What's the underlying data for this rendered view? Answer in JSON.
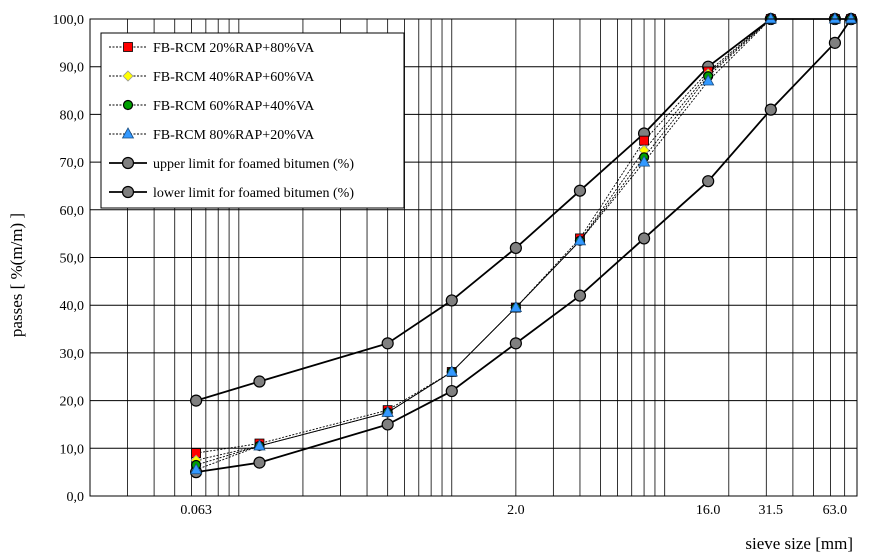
{
  "chart_data": {
    "type": "line",
    "x_scale": "log",
    "xlabel": "sieve size [mm]",
    "ylabel": "passes [ %(m/m) ]",
    "ylim": [
      0,
      100
    ],
    "xlim": [
      0.02,
      80
    ],
    "y_ticks": [
      "0,0",
      "10,0",
      "20,0",
      "30,0",
      "40,0",
      "50,0",
      "60,0",
      "70,0",
      "80,0",
      "90,0",
      "100,0"
    ],
    "x_tick_labels": [
      {
        "value": 0.063,
        "label": "0.063"
      },
      {
        "value": 2.0,
        "label": "2.0"
      },
      {
        "value": 16.0,
        "label": "16.0"
      },
      {
        "value": 31.5,
        "label": "31.5"
      },
      {
        "value": 63.0,
        "label": "63.0"
      }
    ],
    "grid": true,
    "legend_position": "top-left",
    "series": [
      {
        "name": "FB-RCM 20%RAP+80%VA",
        "marker": "square",
        "color": "#ff0000",
        "line": "dotted",
        "x": [
          0.063,
          0.125,
          0.5,
          1.0,
          2.0,
          4.0,
          8.0,
          16.0,
          31.5,
          63.0,
          75.0
        ],
        "y": [
          9,
          11,
          18,
          26,
          39.5,
          54,
          74.5,
          89,
          100,
          100,
          100
        ]
      },
      {
        "name": "FB-RCM 40%RAP+60%VA",
        "marker": "diamond",
        "color": "#ffff00",
        "line": "dotted",
        "x": [
          0.063,
          0.125,
          0.5,
          1.0,
          2.0,
          4.0,
          8.0,
          16.0,
          31.5,
          63.0,
          75.0
        ],
        "y": [
          7.5,
          10.5,
          17.5,
          26,
          39.5,
          53.5,
          72.5,
          88.5,
          100,
          100,
          100
        ]
      },
      {
        "name": "FB-RCM 60%RAP+40%VA",
        "marker": "circle",
        "color": "#00a000",
        "line": "dotted",
        "x": [
          0.063,
          0.125,
          0.5,
          1.0,
          2.0,
          4.0,
          8.0,
          16.0,
          31.5,
          63.0,
          75.0
        ],
        "y": [
          6.5,
          10.5,
          17.5,
          26,
          39.5,
          53.5,
          71,
          88,
          100,
          100,
          100
        ]
      },
      {
        "name": "FB-RCM 80%RAP+20%VA",
        "marker": "triangle",
        "color": "#3399ff",
        "line": "dotted",
        "x": [
          0.063,
          0.125,
          0.5,
          1.0,
          2.0,
          4.0,
          8.0,
          16.0,
          31.5,
          63.0,
          75.0
        ],
        "y": [
          5.5,
          10.5,
          17.5,
          26,
          39.5,
          53.5,
          70,
          87,
          100,
          100,
          100
        ]
      },
      {
        "name": "upper limit for foamed bitumen (%)",
        "marker": "circle",
        "color": "#808080",
        "line": "solid",
        "x": [
          0.063,
          0.125,
          0.5,
          1.0,
          2.0,
          4.0,
          8.0,
          16.0,
          31.5,
          63.0,
          75.0
        ],
        "y": [
          20,
          24,
          32,
          41,
          52,
          64,
          76,
          90,
          100,
          100,
          100
        ]
      },
      {
        "name": "lower limit for foamed bitumen (%)",
        "marker": "circle",
        "color": "#808080",
        "line": "solid",
        "x": [
          0.063,
          0.125,
          0.5,
          1.0,
          2.0,
          4.0,
          8.0,
          16.0,
          31.5,
          63.0,
          75.0
        ],
        "y": [
          5,
          7,
          15,
          22,
          32,
          42,
          54,
          66,
          81,
          95,
          100
        ]
      }
    ]
  }
}
